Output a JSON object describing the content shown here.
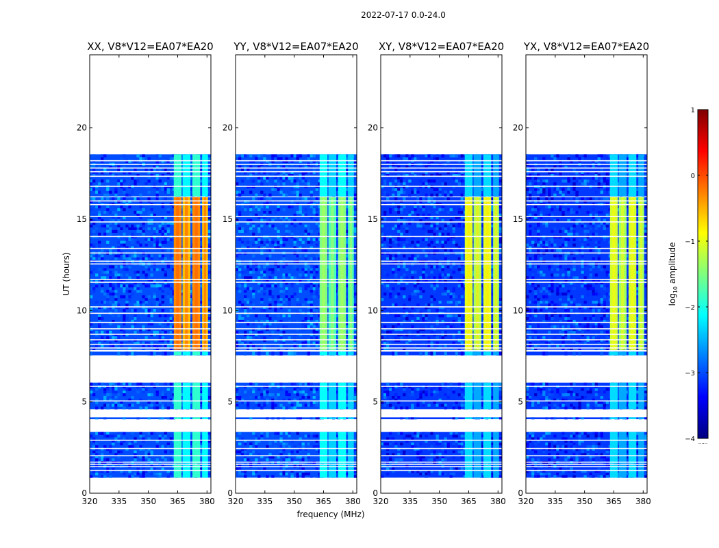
{
  "figure": {
    "suptitle": "2022-07-17 0.0-24.0",
    "xlabel": "frequency (MHz)",
    "ylabel": "UT (hours)",
    "colorbar_label_prefix": "log",
    "colorbar_label_sub": "10",
    "colorbar_label_suffix": " amplitude",
    "colorbar_footer": "......"
  },
  "chart_data": {
    "type": "heatmap",
    "title": "2022-07-17 0.0-24.0",
    "xlabel": "frequency (MHz)",
    "ylabel": "UT (hours)",
    "xlim": [
      320,
      382
    ],
    "ylim": [
      0,
      24
    ],
    "xticks": [
      320,
      335,
      350,
      365,
      380
    ],
    "xtick_labels": [
      "320",
      "335",
      "350",
      "365",
      "380"
    ],
    "yticks": [
      0,
      5,
      10,
      15,
      20
    ],
    "ytick_labels": [
      "0",
      "5",
      "10",
      "15",
      "20"
    ],
    "colorbar": {
      "label": "log10 amplitude",
      "range": [
        -4,
        1
      ],
      "ticks": [
        1,
        0,
        -1,
        -2,
        -3,
        -4
      ],
      "tick_labels": [
        "1",
        "0",
        "−1",
        "−2",
        "−3",
        "−4"
      ],
      "colormap": "jet",
      "stops": [
        "#00007f",
        "#0000ff",
        "#007fff",
        "#00ffff",
        "#7fff7f",
        "#ffff00",
        "#ff7f00",
        "#ff0000",
        "#7f0000"
      ]
    },
    "data_segments_hours": [
      [
        0.85,
        1.55
      ],
      [
        1.62,
        3.35
      ],
      [
        4.05,
        4.15
      ],
      [
        4.6,
        6.05
      ],
      [
        7.55,
        7.75
      ],
      [
        7.85,
        16.2
      ],
      [
        16.25,
        18.55
      ]
    ],
    "gap_lines_hours": [
      1.25,
      1.45,
      1.7,
      2.05,
      2.45,
      2.9,
      4.4,
      5.05,
      5.85,
      7.95,
      8.15,
      8.4,
      8.7,
      9.0,
      9.35,
      9.85,
      10.2,
      11.55,
      11.7,
      12.55,
      12.7,
      13.15,
      13.4,
      14.05,
      14.85,
      15.15,
      15.8,
      16.0,
      16.8,
      17.35,
      17.6,
      17.8,
      18.0,
      18.2
    ],
    "rfi_channels_mhz": [
      [
        363,
        367
      ],
      [
        367.5,
        371.5
      ],
      [
        372.5,
        376.5
      ],
      [
        377.5,
        380.5
      ]
    ],
    "panels": [
      {
        "name": "xx",
        "title": "XX, V8*V12=EA07*EA20",
        "background_log_amplitude": -3.0,
        "band_log_amplitude_8_to_16h": -0.4,
        "band_log_amplitude_other": -2.0
      },
      {
        "name": "yy",
        "title": "YY, V8*V12=EA07*EA20",
        "background_log_amplitude": -3.0,
        "band_log_amplitude_8_to_16h": -1.6,
        "band_log_amplitude_other": -2.2
      },
      {
        "name": "xy",
        "title": "XY, V8*V12=EA07*EA20",
        "background_log_amplitude": -3.1,
        "band_log_amplitude_8_to_16h": -1.1,
        "band_log_amplitude_other": -2.4
      },
      {
        "name": "yx",
        "title": "YX, V8*V12=EA07*EA20",
        "background_log_amplitude": -3.1,
        "band_log_amplitude_8_to_16h": -1.2,
        "band_log_amplitude_other": -2.4
      }
    ]
  }
}
